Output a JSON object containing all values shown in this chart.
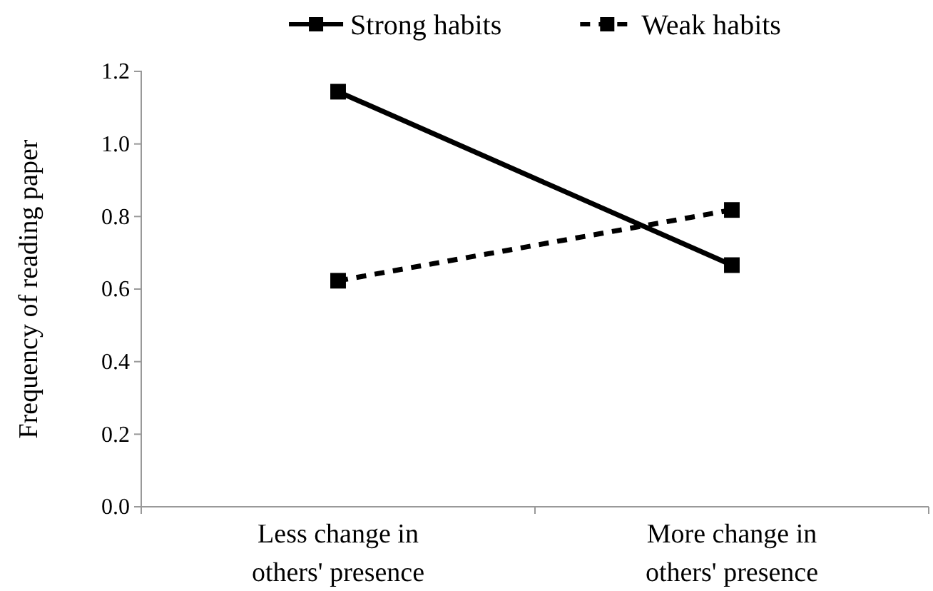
{
  "chart_data": {
    "type": "line",
    "ylabel": "Frequency of reading paper",
    "categories": [
      "Less change in others' presence",
      "More change in others' presence"
    ],
    "series": [
      {
        "name": "Strong habits",
        "color": "#000000",
        "values": [
          1.144,
          0.666
        ],
        "line_style": "solid"
      },
      {
        "name": "Weak habits",
        "color": "#000000",
        "values": [
          0.623,
          0.818
        ],
        "line_style": "dashed"
      }
    ],
    "ylim": [
      0,
      1.2
    ],
    "yticks": [
      {
        "value": 0,
        "label": "0.0"
      },
      {
        "value": 0.2,
        "label": "0.2"
      },
      {
        "value": 0.4,
        "label": "0.4"
      },
      {
        "value": 0.6,
        "label": "0.6"
      },
      {
        "value": 0.8,
        "label": "0.8"
      },
      {
        "value": 1.0,
        "label": "1.0"
      },
      {
        "value": 1.2,
        "label": "1.2"
      }
    ],
    "marker": "square",
    "legend": "top",
    "grid": false
  }
}
